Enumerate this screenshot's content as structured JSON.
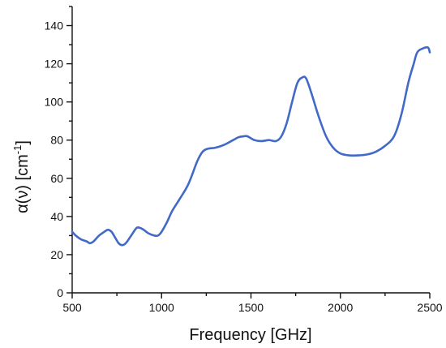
{
  "chart_data": {
    "type": "line",
    "xlabel": "Frequency [GHz]",
    "ylabel_main": "α(ν) [cm",
    "ylabel_sup": "-1",
    "ylabel_close": "]",
    "xlim": [
      500,
      2500
    ],
    "ylim": [
      0,
      150
    ],
    "xticks": [
      500,
      1000,
      1500,
      2000,
      2500
    ],
    "yticks": [
      0,
      20,
      40,
      60,
      80,
      100,
      120,
      140
    ],
    "grid": false,
    "color": "#4169C8",
    "series": [
      {
        "x": [
          500,
          520,
          550,
          580,
          600,
          620,
          650,
          680,
          700,
          720,
          740,
          760,
          780,
          800,
          830,
          860,
          880,
          900,
          930,
          960,
          980,
          1000,
          1030,
          1060,
          1100,
          1150,
          1200,
          1230,
          1260,
          1300,
          1350,
          1400,
          1430,
          1460,
          1480,
          1520,
          1560,
          1600,
          1640,
          1670,
          1700,
          1730,
          1760,
          1790,
          1810,
          1840,
          1880,
          1920,
          1960,
          2000,
          2050,
          2100,
          2150,
          2200,
          2250,
          2300,
          2340,
          2380,
          2410,
          2430,
          2460,
          2490,
          2500
        ],
        "y": [
          32,
          30,
          28,
          27,
          26,
          27,
          30,
          32,
          33,
          32,
          29,
          26,
          25,
          26,
          30,
          34,
          34,
          33,
          31,
          30,
          30,
          32,
          37,
          43,
          49,
          57,
          69,
          74,
          75.5,
          76,
          77.5,
          80,
          81.5,
          82,
          82,
          80,
          79.5,
          80,
          79.5,
          82,
          89,
          100,
          110,
          113,
          112,
          104,
          92,
          82,
          76,
          73,
          72,
          72,
          72.5,
          74,
          77,
          82,
          93,
          110,
          120,
          126,
          128,
          128.5,
          126
        ]
      }
    ]
  }
}
